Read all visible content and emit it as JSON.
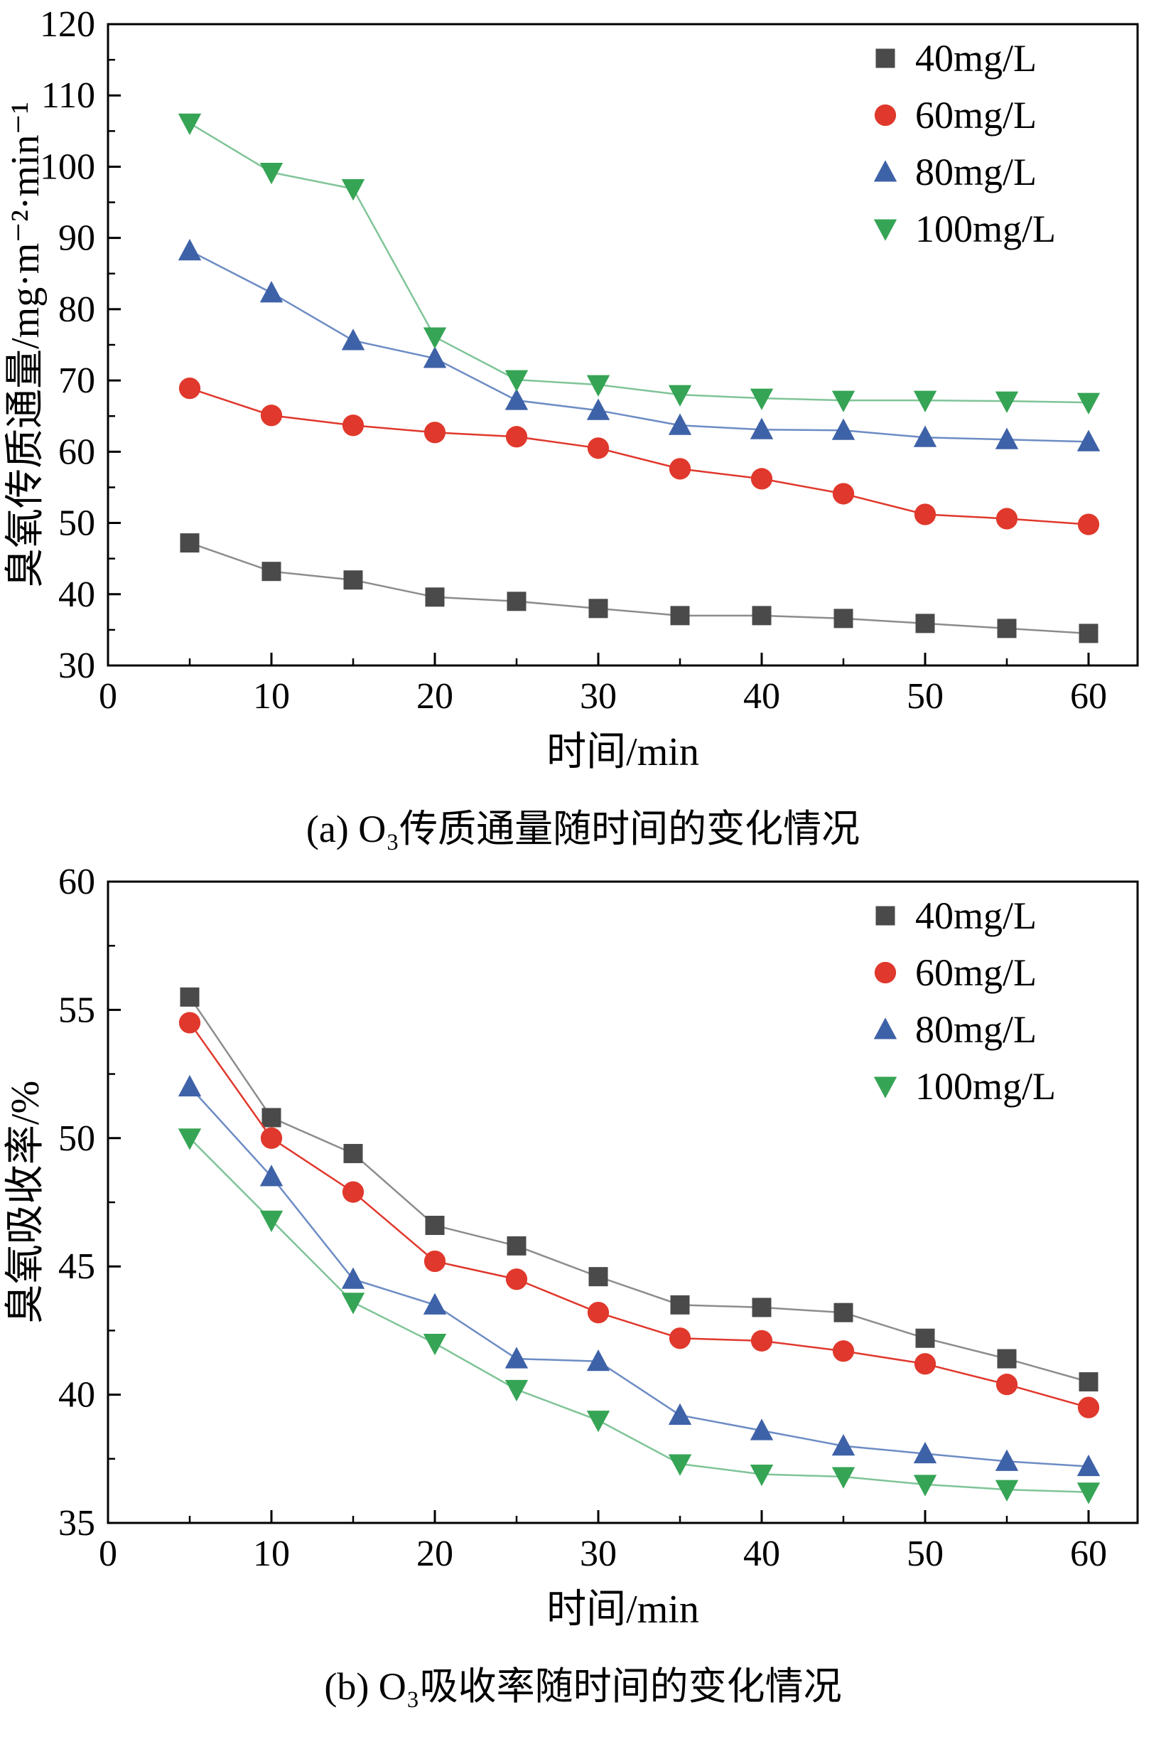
{
  "chart_data": [
    {
      "type": "line",
      "caption": "(a) O₃传质通量随时间的变化情况",
      "xlabel": "时间/min",
      "ylabel": "臭氧传质通量/mg·m⁻²·min⁻¹",
      "xlim": [
        0,
        63
      ],
      "ylim": [
        30,
        120
      ],
      "xticks": [
        0,
        10,
        20,
        30,
        40,
        50,
        60
      ],
      "yticks": [
        30,
        40,
        50,
        60,
        70,
        80,
        90,
        100,
        110,
        120
      ],
      "xminor": 5,
      "yminor": 5,
      "legend_position": "top-right",
      "x": [
        5,
        10,
        15,
        20,
        25,
        30,
        35,
        40,
        45,
        50,
        55,
        60
      ],
      "series": [
        {
          "name": "40mg/L",
          "marker": "square",
          "color": "#4a4a4a",
          "line_color": "#8c8c8c",
          "values": [
            47.2,
            43.2,
            42.0,
            39.6,
            39.0,
            38.0,
            37.0,
            37.0,
            36.6,
            35.9,
            35.2,
            34.5
          ]
        },
        {
          "name": "60mg/L",
          "marker": "circle",
          "color": "#e0382c",
          "line_color": "#e0382c",
          "values": [
            68.9,
            65.1,
            63.7,
            62.7,
            62.1,
            60.5,
            57.6,
            56.2,
            54.1,
            51.2,
            50.6,
            49.8
          ]
        },
        {
          "name": "80mg/L",
          "marker": "triangle-up",
          "color": "#3e62a8",
          "line_color": "#6d8cc4",
          "values": [
            88.2,
            82.3,
            75.6,
            73.1,
            67.2,
            65.8,
            63.7,
            63.1,
            63.0,
            62.0,
            61.7,
            61.4
          ]
        },
        {
          "name": "100mg/L",
          "marker": "triangle-down",
          "color": "#36a455",
          "line_color": "#7fc497",
          "values": [
            106.1,
            99.2,
            96.9,
            76.1,
            70.1,
            69.4,
            68.0,
            67.5,
            67.2,
            67.2,
            67.1,
            66.9
          ]
        }
      ]
    },
    {
      "type": "line",
      "caption": "(b) O₃吸收率随时间的变化情况",
      "xlabel": "时间/min",
      "ylabel": "臭氧吸收率/%",
      "xlim": [
        0,
        63
      ],
      "ylim": [
        35,
        60
      ],
      "xticks": [
        0,
        10,
        20,
        30,
        40,
        50,
        60
      ],
      "yticks": [
        35,
        40,
        45,
        50,
        55,
        60
      ],
      "xminor": 5,
      "yminor": 2.5,
      "legend_position": "top-right",
      "x": [
        5,
        10,
        15,
        20,
        25,
        30,
        35,
        40,
        45,
        50,
        55,
        60
      ],
      "series": [
        {
          "name": "40mg/L",
          "marker": "square",
          "color": "#4a4a4a",
          "line_color": "#8c8c8c",
          "values": [
            55.5,
            50.8,
            49.4,
            46.6,
            45.8,
            44.6,
            43.5,
            43.4,
            43.2,
            42.2,
            41.4,
            40.5
          ]
        },
        {
          "name": "60mg/L",
          "marker": "circle",
          "color": "#e0382c",
          "line_color": "#e0382c",
          "values": [
            54.5,
            50.0,
            47.9,
            45.2,
            44.5,
            43.2,
            42.2,
            42.1,
            41.7,
            41.2,
            40.4,
            39.5
          ]
        },
        {
          "name": "80mg/L",
          "marker": "triangle-up",
          "color": "#3e62a8",
          "line_color": "#6d8cc4",
          "values": [
            52.0,
            48.5,
            44.5,
            43.5,
            41.4,
            41.3,
            39.2,
            38.6,
            38.0,
            37.7,
            37.4,
            37.2
          ]
        },
        {
          "name": "100mg/L",
          "marker": "triangle-down",
          "color": "#36a455",
          "line_color": "#7fc497",
          "values": [
            50.0,
            46.8,
            43.6,
            42.0,
            40.2,
            39.0,
            37.3,
            36.9,
            36.8,
            36.5,
            36.3,
            36.2
          ]
        }
      ]
    }
  ]
}
